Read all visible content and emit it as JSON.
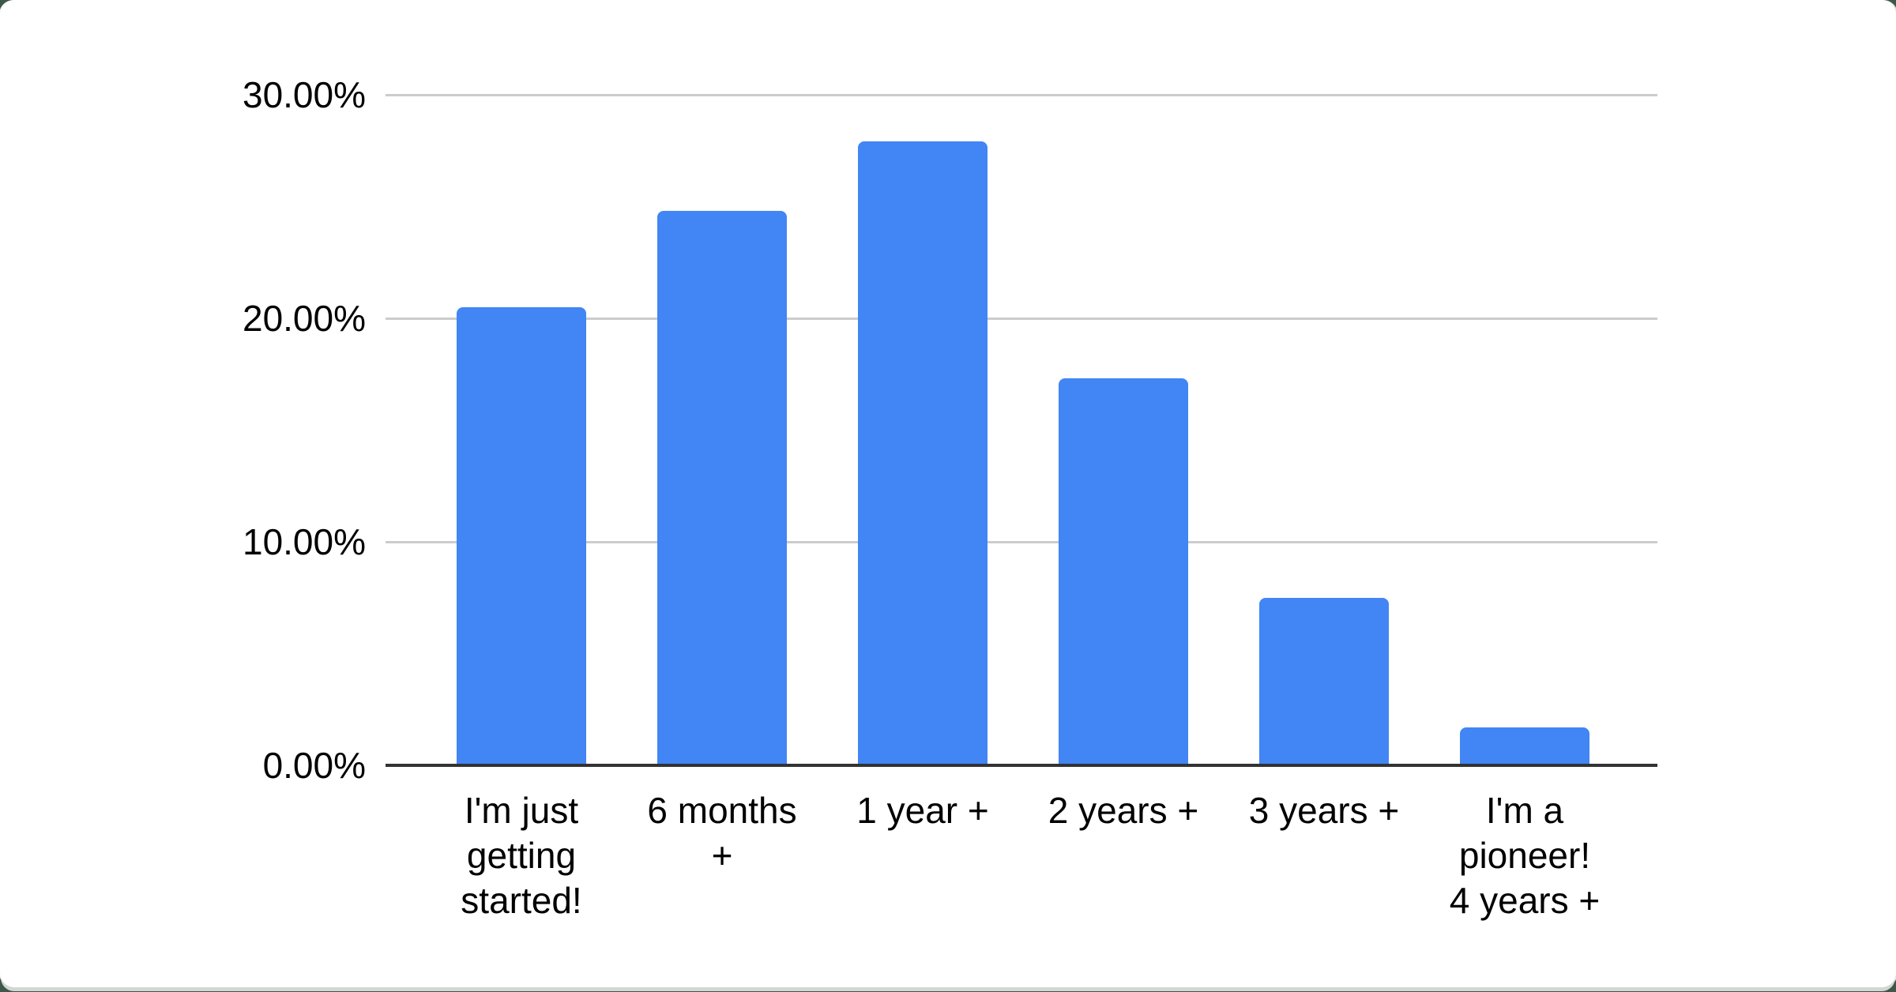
{
  "page": {
    "background_color": "#3d5848",
    "card_color": "#ffffff"
  },
  "chart_data": {
    "type": "bar",
    "title": "",
    "xlabel": "",
    "ylabel": "",
    "categories": [
      "I'm just getting started!",
      "6 months +",
      "1 year +",
      "2 years +",
      "3 years +",
      "I'm a pioneer! 4 years +"
    ],
    "category_lines": [
      [
        "I'm just",
        "getting",
        "started!"
      ],
      [
        "6 months",
        "+"
      ],
      [
        "1 year +"
      ],
      [
        "2 years +"
      ],
      [
        "3 years +"
      ],
      [
        "I'm a",
        "pioneer!",
        "4 years +"
      ]
    ],
    "values": [
      20.5,
      24.8,
      27.9,
      17.3,
      7.5,
      1.7
    ],
    "value_unit": "%",
    "ylim": [
      0,
      30
    ],
    "yticks": [
      0,
      10,
      20,
      30
    ],
    "ytick_labels": [
      "0.00%",
      "10.00%",
      "20.00%",
      "30.00%"
    ],
    "grid": true,
    "legend": "none",
    "bar_color": "#4285f4",
    "gridline_color": "#cccccc",
    "axis_line_color": "#333333",
    "label_color": "#000000"
  }
}
